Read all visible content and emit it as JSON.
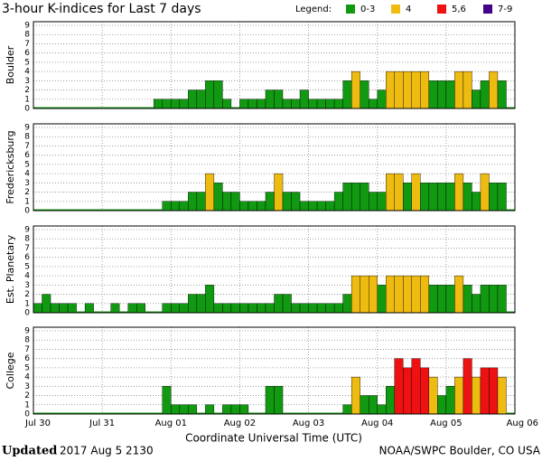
{
  "title": "3-hour K-indices for Last 7 days",
  "legend": {
    "label": "Legend:",
    "items": [
      {
        "name": "0-3",
        "color": "#119911"
      },
      {
        "name": "4",
        "color": "#eebb11"
      },
      {
        "name": "5,6",
        "color": "#ee1111"
      },
      {
        "name": "7-9",
        "color": "#440088"
      }
    ]
  },
  "day_labels": [
    "Jul 30",
    "Jul 31",
    "Aug 01",
    "Aug 02",
    "Aug 03",
    "Aug 04",
    "Aug 05",
    "Aug 06"
  ],
  "xlabel": "Coordinate Universal Time (UTC)",
  "footer": {
    "updated": "Updated",
    "time": "2017 Aug  5 2130",
    "source": "NOAA/SWPC Boulder, CO USA"
  },
  "chart_data": [
    {
      "type": "bar",
      "ylabel": "Boulder",
      "ylim": [
        0,
        9
      ],
      "yticks": [
        0,
        1,
        2,
        3,
        4,
        5,
        6,
        7,
        8,
        9
      ],
      "grid": true,
      "values": [
        0,
        0,
        0,
        0,
        0,
        0,
        0,
        0,
        0,
        0,
        0,
        0,
        0,
        0,
        1,
        1,
        1,
        1,
        2,
        2,
        3,
        3,
        1,
        0,
        1,
        1,
        1,
        2,
        2,
        1,
        1,
        2,
        1,
        1,
        1,
        1,
        3,
        4,
        3,
        1,
        2,
        4,
        4,
        4,
        4,
        4,
        3,
        3,
        3,
        4,
        4,
        2,
        3,
        4,
        3,
        0
      ]
    },
    {
      "type": "bar",
      "ylabel": "Fredericksburg",
      "ylim": [
        0,
        9
      ],
      "yticks": [
        0,
        1,
        2,
        3,
        4,
        5,
        6,
        7,
        8,
        9
      ],
      "grid": true,
      "values": [
        0,
        0,
        0,
        0,
        0,
        0,
        0,
        0,
        0,
        0,
        0,
        0,
        0,
        0,
        0,
        1,
        1,
        1,
        2,
        2,
        4,
        3,
        2,
        2,
        1,
        1,
        1,
        2,
        4,
        2,
        2,
        1,
        1,
        1,
        1,
        2,
        3,
        3,
        3,
        2,
        2,
        4,
        4,
        3,
        4,
        3,
        3,
        3,
        3,
        4,
        3,
        2,
        4,
        3,
        3,
        0
      ]
    },
    {
      "type": "bar",
      "ylabel": "Est. Planetary",
      "ylim": [
        0,
        9
      ],
      "yticks": [
        0,
        1,
        2,
        3,
        4,
        5,
        6,
        7,
        8,
        9
      ],
      "grid": true,
      "values": [
        1,
        2,
        1,
        1,
        1,
        0,
        1,
        0,
        0,
        1,
        0,
        1,
        1,
        0,
        0,
        1,
        1,
        1,
        2,
        2,
        3,
        1,
        1,
        1,
        1,
        1,
        1,
        1,
        2,
        2,
        1,
        1,
        1,
        1,
        1,
        1,
        2,
        4,
        4,
        4,
        3,
        4,
        4,
        4,
        4,
        4,
        3,
        3,
        3,
        4,
        3,
        2,
        3,
        3,
        3,
        0
      ]
    },
    {
      "type": "bar",
      "ylabel": "College",
      "ylim": [
        0,
        9
      ],
      "yticks": [
        0,
        1,
        2,
        3,
        4,
        5,
        6,
        7,
        8,
        9
      ],
      "grid": true,
      "values": [
        0,
        0,
        0,
        0,
        0,
        0,
        0,
        0,
        0,
        0,
        0,
        0,
        0,
        0,
        0,
        3,
        1,
        1,
        1,
        0,
        1,
        0,
        1,
        1,
        1,
        0,
        0,
        3,
        3,
        0,
        0,
        0,
        0,
        0,
        0,
        0,
        1,
        4,
        2,
        2,
        1,
        3,
        6,
        5,
        6,
        5,
        4,
        2,
        3,
        4,
        6,
        4,
        5,
        5,
        4,
        0
      ]
    }
  ]
}
